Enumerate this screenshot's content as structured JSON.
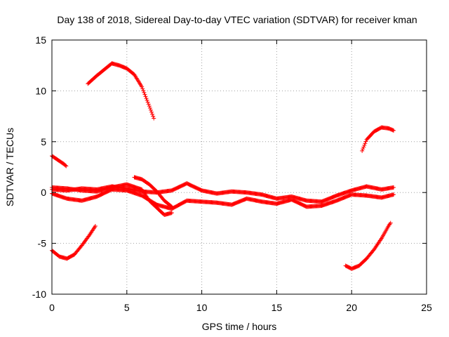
{
  "chart_data": {
    "type": "scatter",
    "title": "Day 138 of 2018, Sidereal Day-to-day VTEC variation (SDTVAR) for receiver kman",
    "xlabel": "GPS time / hours",
    "ylabel": "SDTVAR / TECUs",
    "xlim": [
      0,
      25
    ],
    "ylim": [
      -10,
      15
    ],
    "xticks": [
      "0",
      "5",
      "10",
      "15",
      "20",
      "25"
    ],
    "yticks": [
      "-10",
      "-5",
      "0",
      "5",
      "10",
      "15"
    ],
    "grid": true,
    "marker": "+",
    "color": "#ff0000",
    "series": [
      {
        "name": "arc-high-morning",
        "x": [
          2.4,
          3.0,
          3.5,
          4.0,
          4.5,
          5.0,
          5.5,
          6.0,
          6.5,
          6.8
        ],
        "y": [
          10.7,
          11.5,
          12.1,
          12.7,
          12.5,
          12.2,
          11.6,
          10.4,
          8.5,
          7.3
        ]
      },
      {
        "name": "arc-start-positive",
        "x": [
          0.0,
          0.4,
          0.8,
          0.95
        ],
        "y": [
          3.6,
          3.2,
          2.8,
          2.6
        ]
      },
      {
        "name": "arc-start-negative",
        "x": [
          0.0,
          0.5,
          1.0,
          1.5,
          2.0,
          2.5,
          2.9
        ],
        "y": [
          -5.7,
          -6.3,
          -6.5,
          -6.1,
          -5.2,
          -4.2,
          -3.3
        ]
      },
      {
        "name": "arc-high-evening",
        "x": [
          20.7,
          21.0,
          21.5,
          22.0,
          22.5,
          22.8
        ],
        "y": [
          4.1,
          5.2,
          6.0,
          6.4,
          6.3,
          6.1
        ]
      },
      {
        "name": "arc-low-evening",
        "x": [
          19.6,
          20.0,
          20.5,
          21.0,
          21.5,
          22.0,
          22.5,
          22.6
        ],
        "y": [
          -7.2,
          -7.5,
          -7.2,
          -6.5,
          -5.6,
          -4.5,
          -3.2,
          -3.0
        ]
      },
      {
        "name": "zero-band-a",
        "x": [
          0,
          1,
          2,
          3,
          4,
          5,
          6,
          7,
          8,
          9,
          10,
          11,
          12,
          13,
          14,
          15,
          16,
          17,
          18,
          19,
          20,
          21,
          22,
          22.8
        ],
        "y": [
          0.3,
          0.2,
          0.4,
          0.3,
          0.6,
          0.4,
          0.1,
          0.0,
          0.2,
          0.9,
          0.2,
          -0.1,
          0.1,
          0.0,
          -0.2,
          -0.6,
          -0.4,
          -0.8,
          -0.9,
          -0.3,
          0.2,
          0.6,
          0.3,
          0.5
        ]
      },
      {
        "name": "zero-band-b",
        "x": [
          0,
          1,
          2,
          3,
          4,
          5,
          6,
          7,
          8,
          9,
          10,
          11,
          12,
          13,
          14,
          15,
          16,
          17,
          18,
          19,
          20,
          21,
          22,
          22.8
        ],
        "y": [
          -0.1,
          -0.6,
          -0.8,
          -0.4,
          0.3,
          0.2,
          -0.3,
          -1.2,
          -1.6,
          -0.8,
          -0.9,
          -1.0,
          -1.2,
          -0.6,
          -0.9,
          -1.1,
          -0.7,
          -1.4,
          -1.3,
          -0.8,
          -0.2,
          -0.3,
          -0.5,
          -0.2
        ]
      },
      {
        "name": "zero-band-c",
        "x": [
          5.5,
          6.0,
          6.5,
          7.0,
          7.5,
          8.0
        ],
        "y": [
          1.5,
          1.3,
          0.8,
          0.1,
          -0.8,
          -1.4
        ]
      },
      {
        "name": "zero-band-d",
        "x": [
          0,
          1,
          2,
          3,
          4,
          5,
          6,
          6.5,
          7,
          7.5,
          8
        ],
        "y": [
          0.5,
          0.4,
          0.2,
          0.1,
          0.5,
          0.8,
          0.3,
          -0.8,
          -1.5,
          -2.2,
          -2.0
        ]
      }
    ]
  }
}
